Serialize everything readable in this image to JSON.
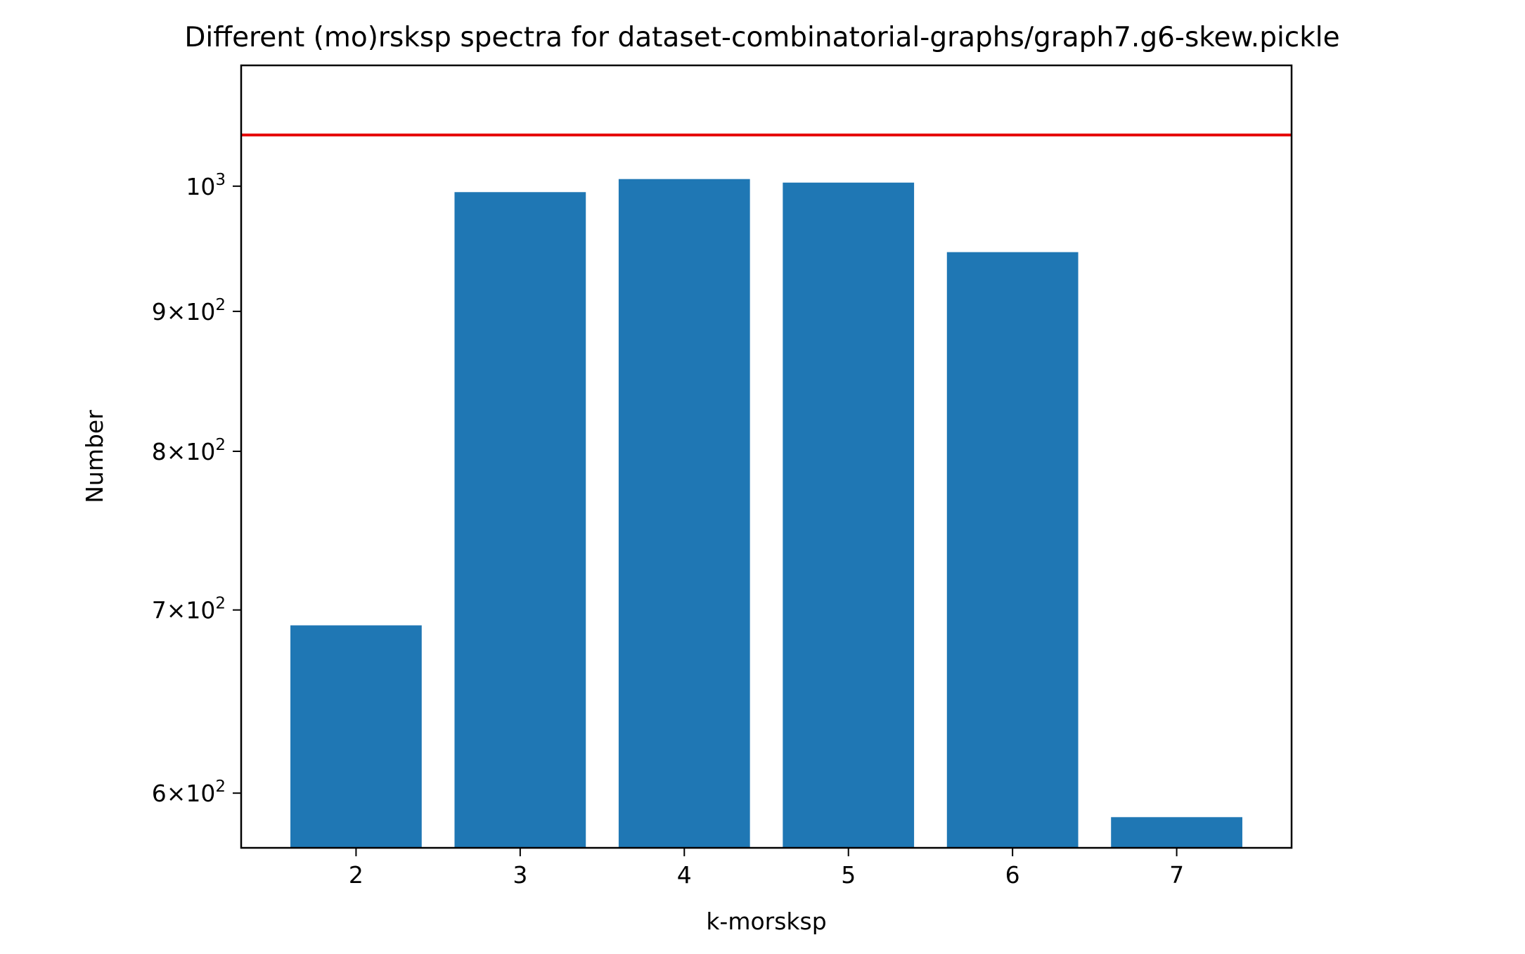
{
  "chart_data": {
    "type": "bar",
    "title": "Different (mo)rsksp spectra for dataset-combinatorial-graphs/graph7.g6-skew.pickle",
    "xlabel": "k-morsksp",
    "ylabel": "Number",
    "categories": [
      "2",
      "3",
      "4",
      "5",
      "6",
      "7"
    ],
    "values": [
      691,
      995,
      1006,
      1003,
      946,
      588
    ],
    "reference_line": {
      "value": 1044,
      "color": "#e60000"
    },
    "y_scale": "log",
    "ylim": [
      573,
      1107
    ],
    "xlim": [
      1.3,
      7.7
    ],
    "y_ticks": [
      {
        "value": 600,
        "mantissa": "6",
        "base": "10",
        "exponent": "2"
      },
      {
        "value": 700,
        "mantissa": "7",
        "base": "10",
        "exponent": "2"
      },
      {
        "value": 800,
        "mantissa": "8",
        "base": "10",
        "exponent": "2"
      },
      {
        "value": 900,
        "mantissa": "9",
        "base": "10",
        "exponent": "2"
      },
      {
        "value": 1000,
        "mantissa": "",
        "base": "10",
        "exponent": "3"
      }
    ],
    "bar_color": "#1f77b4",
    "grid": false,
    "legend": "none"
  }
}
